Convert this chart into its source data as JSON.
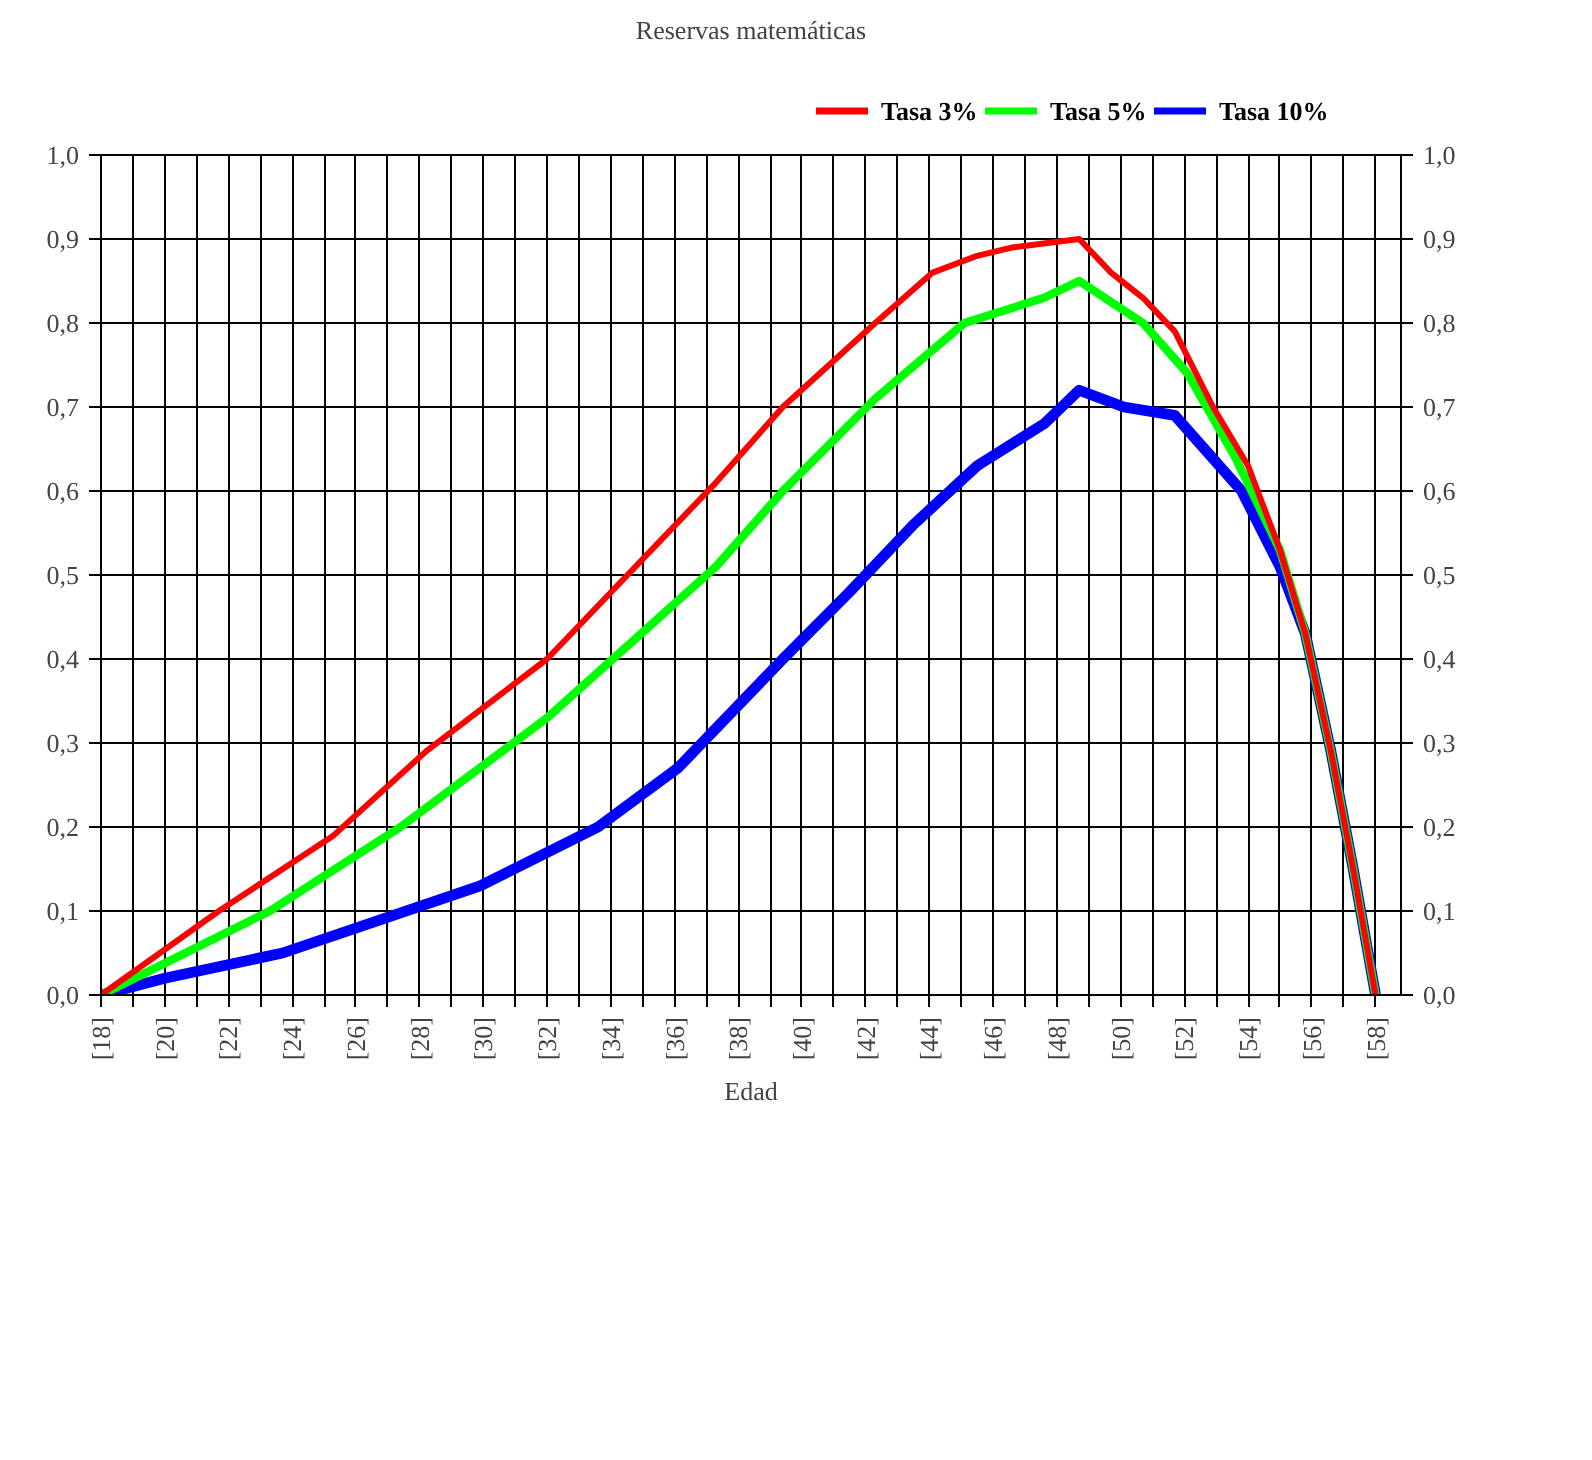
{
  "chart_data": {
    "type": "line",
    "title": "Reservas matemáticas",
    "xlabel": "Edad",
    "xlim": [
      18,
      58.8
    ],
    "ylim": [
      0,
      1
    ],
    "y2lim": [
      0,
      1
    ],
    "xticks": [
      {
        "value": 18,
        "label": "[18]"
      },
      {
        "value": 19,
        "label": null
      },
      {
        "value": 20,
        "label": "[20]"
      },
      {
        "value": 21,
        "label": null
      },
      {
        "value": 22,
        "label": "[22]"
      },
      {
        "value": 23,
        "label": null
      },
      {
        "value": 24,
        "label": "[24]"
      },
      {
        "value": 25,
        "label": null
      },
      {
        "value": 26,
        "label": "[26]"
      },
      {
        "value": 27,
        "label": null
      },
      {
        "value": 28,
        "label": "[28]"
      },
      {
        "value": 29,
        "label": null
      },
      {
        "value": 30,
        "label": "[30]"
      },
      {
        "value": 31,
        "label": null
      },
      {
        "value": 32,
        "label": "[32]"
      },
      {
        "value": 33,
        "label": null
      },
      {
        "value": 34,
        "label": "[34]"
      },
      {
        "value": 35,
        "label": null
      },
      {
        "value": 36,
        "label": "[36]"
      },
      {
        "value": 37,
        "label": null
      },
      {
        "value": 38,
        "label": "[38]"
      },
      {
        "value": 39,
        "label": null
      },
      {
        "value": 40,
        "label": "[40]"
      },
      {
        "value": 41,
        "label": null
      },
      {
        "value": 42,
        "label": "[42]"
      },
      {
        "value": 43,
        "label": null
      },
      {
        "value": 44,
        "label": "[44]"
      },
      {
        "value": 45,
        "label": null
      },
      {
        "value": 46,
        "label": "[46]"
      },
      {
        "value": 47,
        "label": null
      },
      {
        "value": 48,
        "label": "[48]"
      },
      {
        "value": 49,
        "label": null
      },
      {
        "value": 50,
        "label": "[50]"
      },
      {
        "value": 51,
        "label": null
      },
      {
        "value": 52,
        "label": "[52]"
      },
      {
        "value": 53,
        "label": null
      },
      {
        "value": 54,
        "label": "[54]"
      },
      {
        "value": 55,
        "label": null
      },
      {
        "value": 56,
        "label": "[56]"
      },
      {
        "value": 57,
        "label": null
      },
      {
        "value": 58,
        "label": "[58]"
      }
    ],
    "yticks": [
      {
        "value": 0,
        "label": "0,0"
      },
      {
        "value": 0.1,
        "label": "0,1"
      },
      {
        "value": 0.2,
        "label": "0,2"
      },
      {
        "value": 0.3,
        "label": "0,3"
      },
      {
        "value": 0.4,
        "label": "0,4"
      },
      {
        "value": 0.5,
        "label": "0,5"
      },
      {
        "value": 0.6,
        "label": "0,6"
      },
      {
        "value": 0.7,
        "label": "0,7"
      },
      {
        "value": 0.8,
        "label": "0,8"
      },
      {
        "value": 0.9,
        "label": "0,9"
      },
      {
        "value": 1.0,
        "label": "1,0"
      }
    ],
    "y2ticks": [
      {
        "value": 0,
        "label": "0,0"
      },
      {
        "value": 0.1,
        "label": "0,1"
      },
      {
        "value": 0.2,
        "label": "0,2"
      },
      {
        "value": 0.3,
        "label": "0,3"
      },
      {
        "value": 0.4,
        "label": "0,4"
      },
      {
        "value": 0.5,
        "label": "0,5"
      },
      {
        "value": 0.6,
        "label": "0,6"
      },
      {
        "value": 0.7,
        "label": "0,7"
      },
      {
        "value": 0.8,
        "label": "0,8"
      },
      {
        "value": 0.9,
        "label": "0,9"
      },
      {
        "value": 1.0,
        "label": "1,0"
      }
    ],
    "grid": true,
    "legend": "top right",
    "line_style": "solid",
    "series": [
      {
        "name": "Tasa 3%",
        "color": "#ff0000",
        "x": [
          18,
          21.7,
          25.3,
          28.2,
          32,
          37.3,
          39.4,
          42.3,
          44.1,
          45.5,
          46.6,
          48.7,
          49.7,
          50.7,
          51.7,
          52.9,
          54,
          55,
          55.8,
          56.6,
          57.3,
          58
        ],
        "values": [
          0,
          0.1,
          0.19,
          0.29,
          0.4,
          0.61,
          0.7,
          0.8,
          0.86,
          0.88,
          0.89,
          0.9,
          0.86,
          0.83,
          0.79,
          0.7,
          0.63,
          0.53,
          0.43,
          0.29,
          0.15,
          0
        ]
      },
      {
        "name": "Tasa 5%",
        "color": "#00ff00",
        "x": [
          18,
          23.3,
          27.4,
          32,
          37.3,
          39.4,
          42.3,
          45.1,
          47.6,
          48.7,
          50.7,
          52.1,
          53.6,
          55,
          55.8,
          56.6,
          57.3,
          58
        ],
        "values": [
          0,
          0.1,
          0.2,
          0.33,
          0.51,
          0.6,
          0.71,
          0.8,
          0.83,
          0.85,
          0.8,
          0.74,
          0.64,
          0.53,
          0.43,
          0.29,
          0.15,
          0
        ]
      },
      {
        "name": "Tasa 10%",
        "color": "#0000ff",
        "x": [
          18,
          20,
          23.7,
          29.9,
          33.6,
          36.1,
          39.4,
          41.5,
          43.5,
          45.5,
          47.6,
          48.7,
          50.1,
          51.7,
          53.8,
          55,
          55.8,
          56.6,
          57.3,
          58
        ],
        "values": [
          0,
          0.02,
          0.05,
          0.13,
          0.2,
          0.27,
          0.4,
          0.48,
          0.56,
          0.63,
          0.68,
          0.72,
          0.7,
          0.69,
          0.6,
          0.51,
          0.43,
          0.29,
          0.15,
          0
        ]
      }
    ]
  }
}
